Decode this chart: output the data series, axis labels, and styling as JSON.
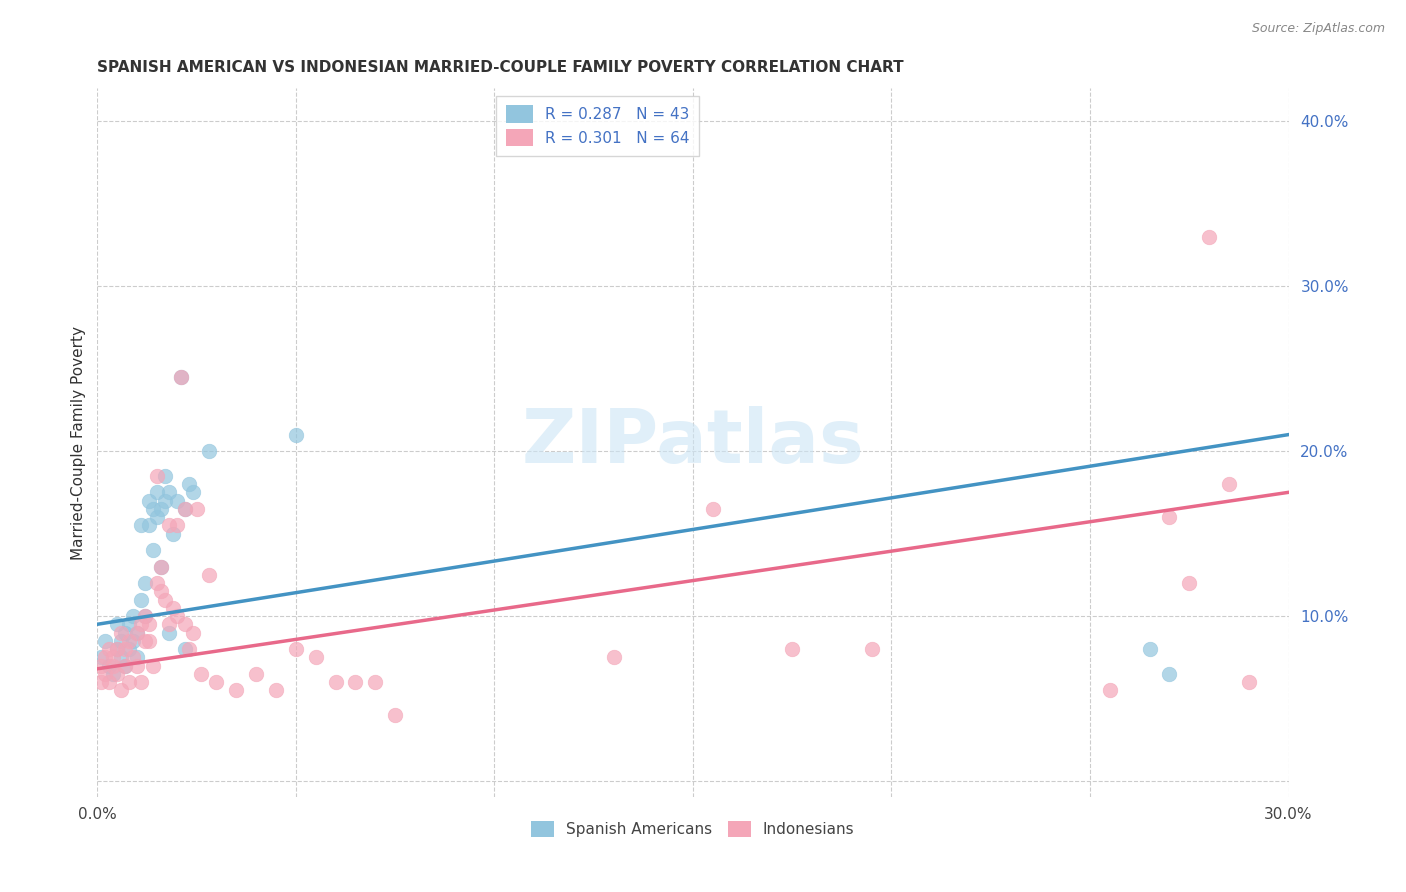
{
  "title": "SPANISH AMERICAN VS INDONESIAN MARRIED-COUPLE FAMILY POVERTY CORRELATION CHART",
  "source": "Source: ZipAtlas.com",
  "ylabel": "Married-Couple Family Poverty",
  "xlim": [
    0.0,
    0.3
  ],
  "ylim": [
    -0.01,
    0.42
  ],
  "xticks": [
    0.0,
    0.05,
    0.1,
    0.15,
    0.2,
    0.25,
    0.3
  ],
  "xtick_labels": [
    "0.0%",
    "",
    "",
    "",
    "",
    "",
    "30.0%"
  ],
  "yticks_right": [
    0.0,
    0.1,
    0.2,
    0.3,
    0.4
  ],
  "ytick_labels_right": [
    "",
    "10.0%",
    "20.0%",
    "30.0%",
    "40.0%"
  ],
  "blue_color": "#92c5de",
  "pink_color": "#f4a6b8",
  "blue_line_color": "#4393c3",
  "pink_line_color": "#e8698a",
  "watermark": "ZIPatlas",
  "blue_scatter_x": [
    0.001,
    0.002,
    0.003,
    0.004,
    0.005,
    0.005,
    0.006,
    0.006,
    0.007,
    0.007,
    0.008,
    0.008,
    0.009,
    0.009,
    0.01,
    0.01,
    0.011,
    0.011,
    0.012,
    0.012,
    0.013,
    0.013,
    0.014,
    0.014,
    0.015,
    0.015,
    0.016,
    0.016,
    0.017,
    0.017,
    0.018,
    0.018,
    0.019,
    0.02,
    0.021,
    0.022,
    0.022,
    0.023,
    0.024,
    0.028,
    0.05,
    0.265,
    0.27
  ],
  "blue_scatter_y": [
    0.075,
    0.085,
    0.07,
    0.065,
    0.08,
    0.095,
    0.075,
    0.085,
    0.07,
    0.09,
    0.08,
    0.095,
    0.085,
    0.1,
    0.075,
    0.09,
    0.11,
    0.155,
    0.1,
    0.12,
    0.155,
    0.17,
    0.165,
    0.14,
    0.16,
    0.175,
    0.165,
    0.13,
    0.17,
    0.185,
    0.09,
    0.175,
    0.15,
    0.17,
    0.245,
    0.08,
    0.165,
    0.18,
    0.175,
    0.2,
    0.21,
    0.08,
    0.065
  ],
  "pink_scatter_x": [
    0.001,
    0.001,
    0.002,
    0.002,
    0.003,
    0.003,
    0.004,
    0.004,
    0.005,
    0.005,
    0.006,
    0.006,
    0.007,
    0.007,
    0.008,
    0.008,
    0.009,
    0.01,
    0.01,
    0.011,
    0.011,
    0.012,
    0.012,
    0.013,
    0.013,
    0.014,
    0.015,
    0.015,
    0.016,
    0.016,
    0.017,
    0.018,
    0.018,
    0.019,
    0.02,
    0.02,
    0.021,
    0.022,
    0.022,
    0.023,
    0.024,
    0.025,
    0.026,
    0.028,
    0.03,
    0.035,
    0.04,
    0.045,
    0.05,
    0.055,
    0.06,
    0.065,
    0.07,
    0.075,
    0.13,
    0.155,
    0.175,
    0.195,
    0.255,
    0.27,
    0.275,
    0.28,
    0.285,
    0.29
  ],
  "pink_scatter_y": [
    0.06,
    0.07,
    0.065,
    0.075,
    0.06,
    0.08,
    0.07,
    0.075,
    0.065,
    0.08,
    0.055,
    0.09,
    0.07,
    0.08,
    0.06,
    0.085,
    0.075,
    0.07,
    0.09,
    0.06,
    0.095,
    0.085,
    0.1,
    0.085,
    0.095,
    0.07,
    0.12,
    0.185,
    0.13,
    0.115,
    0.11,
    0.155,
    0.095,
    0.105,
    0.155,
    0.1,
    0.245,
    0.095,
    0.165,
    0.08,
    0.09,
    0.165,
    0.065,
    0.125,
    0.06,
    0.055,
    0.065,
    0.055,
    0.08,
    0.075,
    0.06,
    0.06,
    0.06,
    0.04,
    0.075,
    0.165,
    0.08,
    0.08,
    0.055,
    0.16,
    0.12,
    0.33,
    0.18,
    0.06
  ],
  "blue_line_x": [
    0.0,
    0.3
  ],
  "blue_line_y_start": 0.095,
  "blue_line_y_end": 0.21,
  "pink_line_x": [
    0.0,
    0.3
  ],
  "pink_line_y_start": 0.068,
  "pink_line_y_end": 0.175
}
